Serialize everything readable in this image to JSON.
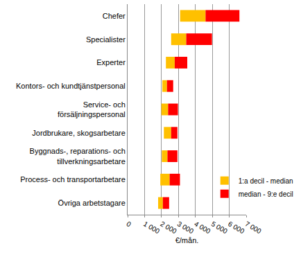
{
  "chart_data": {
    "type": "bar",
    "orientation": "horizontal",
    "stacked": true,
    "categories": [
      "Chefer",
      "Specialister",
      "Experter",
      "Kontors- och kundtjänstpersonal",
      "Service- och\nförsäljningspersonal",
      "Jordbrukare, skogsarbetare",
      "Byggnads-, reparations- och\ntillverkningsarbetare",
      "Process- och transportarbetare",
      "Övriga arbetstagare"
    ],
    "base": [
      3100,
      2570,
      2260,
      2050,
      1990,
      2140,
      2020,
      1930,
      1800
    ],
    "series": [
      {
        "name": "1:a decil - median",
        "color": "#FFC000",
        "values": [
          1500,
          890,
          520,
          270,
          400,
          430,
          330,
          550,
          280
        ]
      },
      {
        "name": "median - 9:e decil",
        "color": "#FF0000",
        "values": [
          2000,
          1520,
          740,
          370,
          580,
          370,
          590,
          610,
          370
        ]
      }
    ],
    "x_label": "€/mån.",
    "xlim": [
      0,
      7000
    ],
    "xticks": [
      0,
      {
        "value": 1000,
        "label": "1 000"
      },
      {
        "value": 2000,
        "label": "2 000"
      },
      {
        "value": 3000,
        "label": "3 000"
      },
      {
        "value": 4000,
        "label": "4 000"
      },
      {
        "value": 5000,
        "label": "5 000"
      },
      {
        "value": 6000,
        "label": "6 000"
      },
      {
        "value": 7000,
        "label": "7 000"
      }
    ],
    "grid": true,
    "legend": "right"
  }
}
